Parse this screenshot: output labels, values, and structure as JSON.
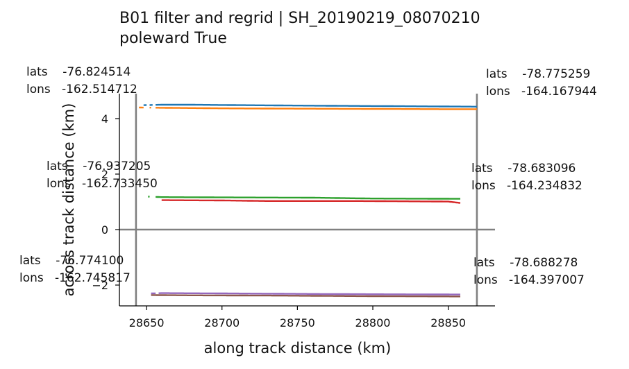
{
  "chart_data": {
    "type": "line",
    "title": "B01 filter and regrid | SH_20190219_08070210",
    "subtitle": "poleward True",
    "xlabel": "along track distance (km)",
    "ylabel": "across track distance (km)",
    "xlim": [
      28632,
      28881
    ],
    "ylim": [
      -2.75,
      4.9
    ],
    "x_ticks": [
      "28650",
      "28700",
      "28750",
      "28800",
      "28850"
    ],
    "y_ticks": [
      "4",
      "2",
      "0",
      "−2"
    ],
    "x_tick_values": [
      28650,
      28700,
      28750,
      28800,
      28850
    ],
    "y_tick_values": [
      4,
      2,
      0,
      -2
    ],
    "grid": false,
    "vertical_lines": [
      28643,
      28869
    ],
    "horizontal_lines": [
      0
    ],
    "series": [
      {
        "color": "#1f77b4",
        "gaps": [
          [
            28644,
            28648
          ],
          [
            28650,
            28652
          ],
          [
            28654,
            28656
          ]
        ],
        "x": [
          28644,
          28660,
          28680,
          28700,
          28750,
          28780,
          28840,
          28869
        ],
        "y": [
          4.48,
          4.5,
          4.5,
          4.49,
          4.47,
          4.46,
          4.44,
          4.43
        ]
      },
      {
        "color": "#ff7f0e",
        "gaps": [
          [
            28648,
            28652
          ],
          [
            28653,
            28656
          ]
        ],
        "x": [
          28645,
          28660,
          28700,
          28740,
          28800,
          28850,
          28869
        ],
        "y": [
          4.4,
          4.39,
          4.37,
          4.36,
          4.35,
          4.34,
          4.34
        ]
      },
      {
        "color": "#2ca02c",
        "gaps": [
          [
            28645,
            28651
          ],
          [
            28652,
            28656
          ]
        ],
        "x": [
          28645,
          28660,
          28700,
          28760,
          28800,
          28858
        ],
        "y": [
          1.2,
          1.17,
          1.16,
          1.15,
          1.12,
          1.11
        ]
      },
      {
        "color": "#d62728",
        "gaps": [],
        "x": [
          28660,
          28700,
          28730,
          28790,
          28850,
          28858
        ],
        "y": [
          1.06,
          1.05,
          1.03,
          1.03,
          1.01,
          0.96
        ]
      },
      {
        "color": "#9467bd",
        "gaps": [
          [
            28656,
            28658
          ]
        ],
        "x": [
          28653,
          28660,
          28700,
          28760,
          28800,
          28858
        ],
        "y": [
          -2.3,
          -2.29,
          -2.3,
          -2.32,
          -2.33,
          -2.34
        ]
      },
      {
        "color": "#8c564b",
        "gaps": [],
        "x": [
          28653,
          28680,
          28740,
          28800,
          28858
        ],
        "y": [
          -2.36,
          -2.37,
          -2.38,
          -2.4,
          -2.41
        ]
      }
    ],
    "annotations": [
      {
        "lats_label": "lats",
        "lats": "-76.824514",
        "lons_label": "lons",
        "lons": "-162.514712"
      },
      {
        "lats_label": "lats",
        "lats": "-78.775259",
        "lons_label": "lons",
        "lons": "-164.167944"
      },
      {
        "lats_label": "lats",
        "lats": "-76.937205",
        "lons_label": "lons",
        "lons": "-162.733450"
      },
      {
        "lats_label": "lats",
        "lats": "-78.683096",
        "lons_label": "lons",
        "lons": "-164.234832"
      },
      {
        "lats_label": "lats",
        "lats": "-76.774100",
        "lons_label": "lons",
        "lons": "-162.745817"
      },
      {
        "lats_label": "lats",
        "lats": "-78.688278",
        "lons_label": "lons",
        "lons": "-164.397007"
      }
    ]
  }
}
